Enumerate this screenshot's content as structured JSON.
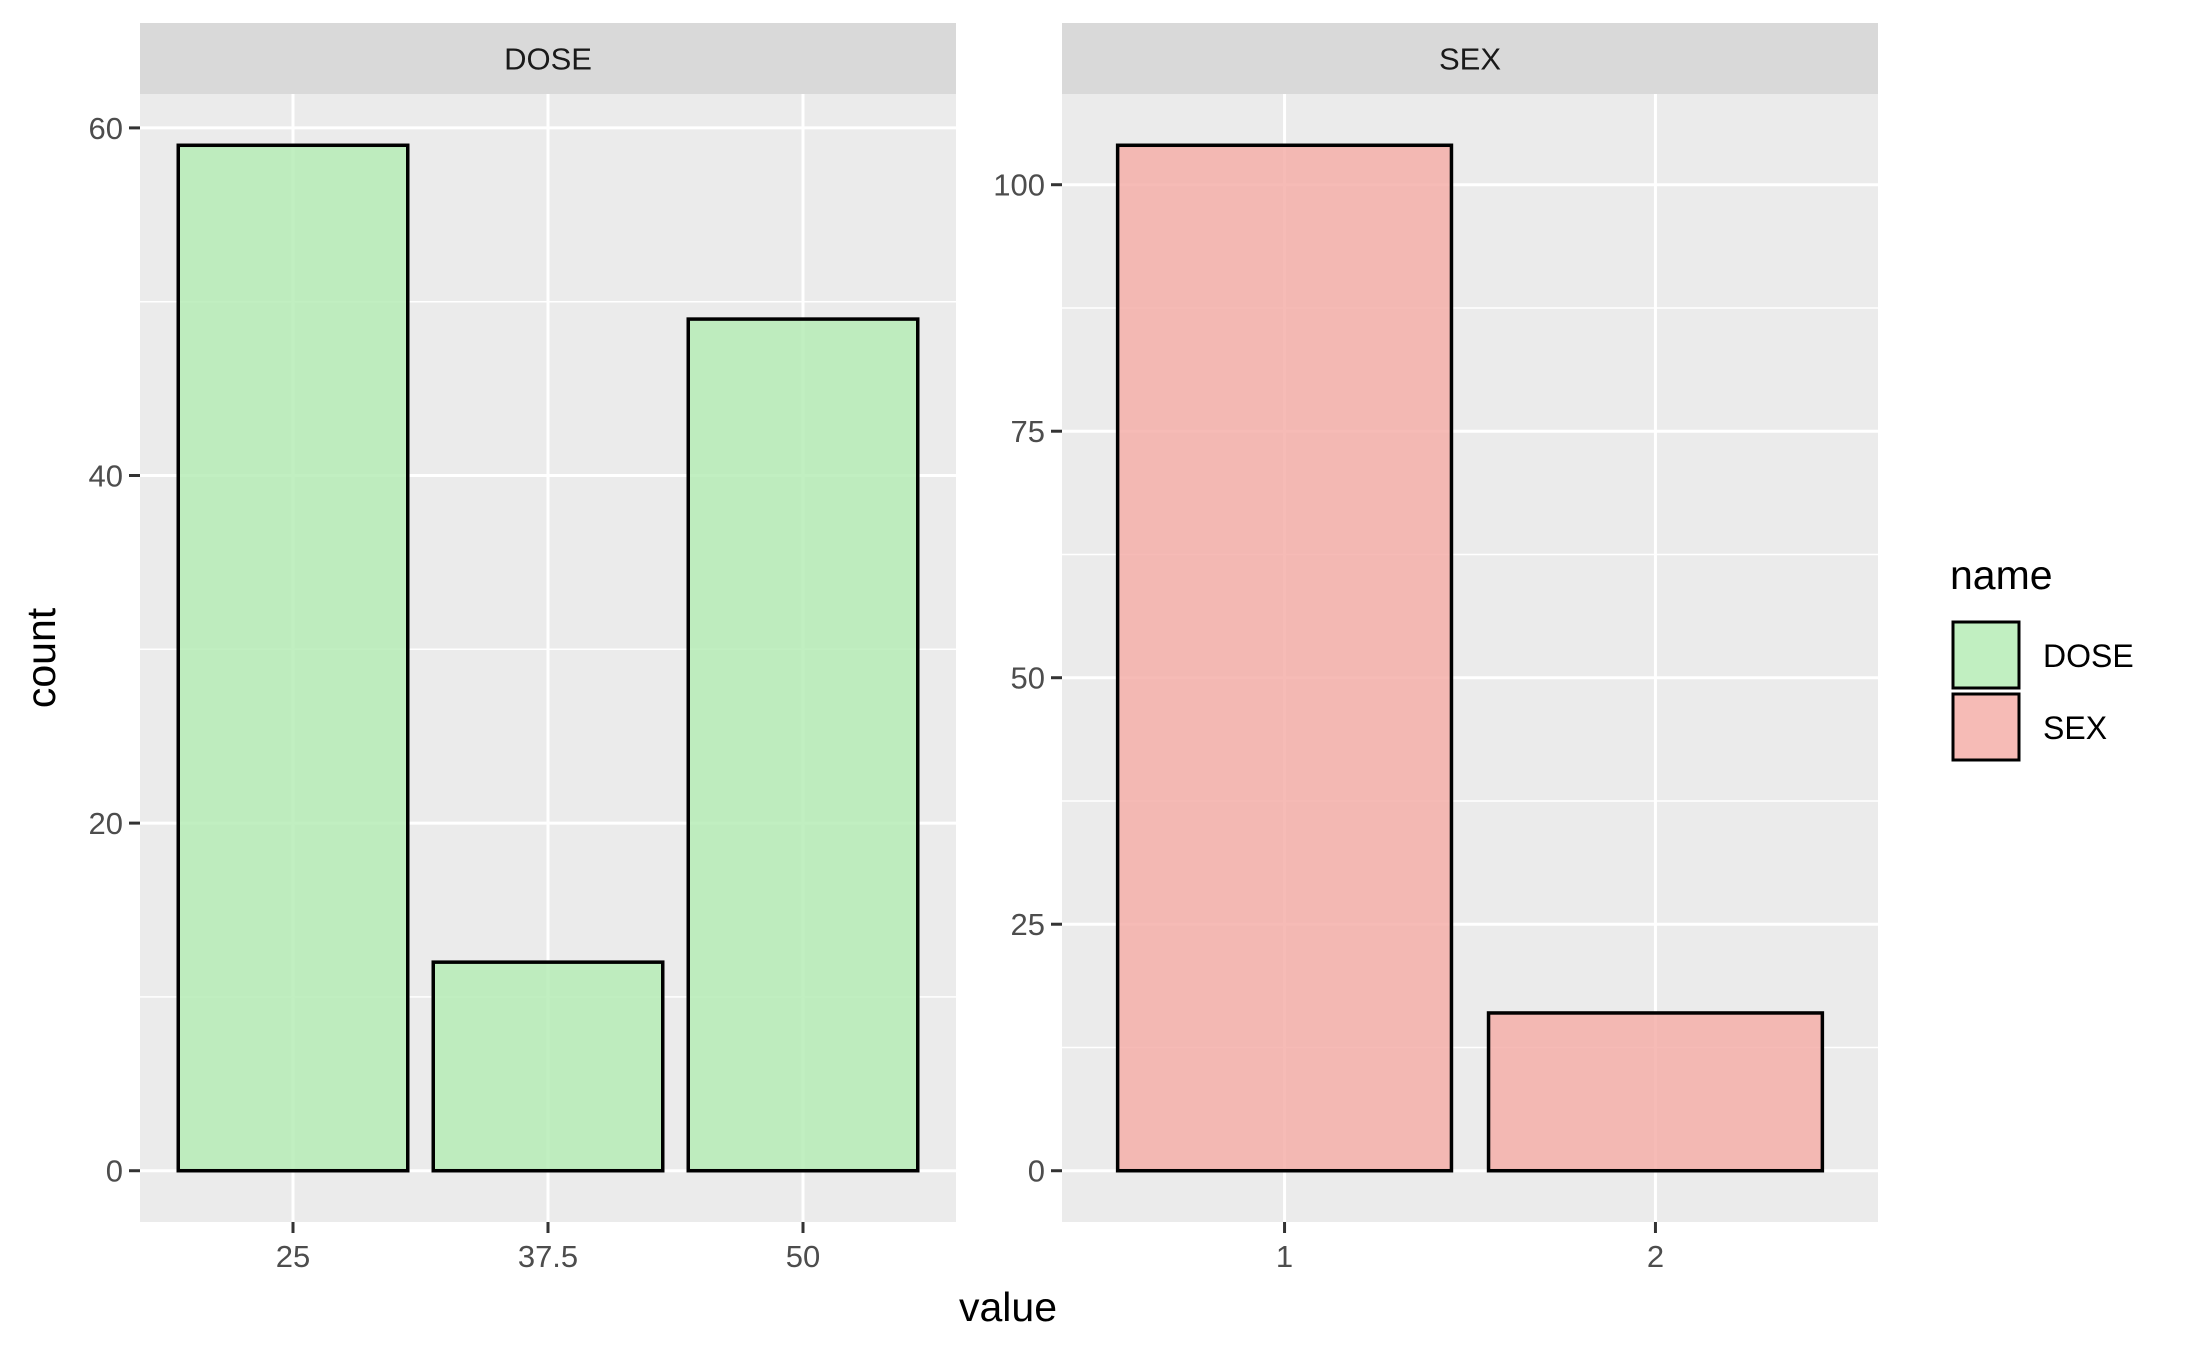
{
  "chart_data": [
    {
      "type": "bar",
      "facet_label": "DOSE",
      "categories": [
        "25",
        "37.5",
        "50"
      ],
      "values": [
        59,
        12,
        49
      ],
      "ylim": [
        -2.95,
        61.95
      ],
      "y_ticks": [
        0,
        20,
        40,
        60
      ],
      "y_tick_labels": [
        "0",
        "20",
        "40",
        "60"
      ],
      "fill_color": "#b3ecb3"
    },
    {
      "type": "bar",
      "facet_label": "SEX",
      "categories": [
        "1",
        "2"
      ],
      "values": [
        104,
        16
      ],
      "ylim": [
        -5.2,
        109.2
      ],
      "y_ticks": [
        0,
        25,
        50,
        75,
        100
      ],
      "y_tick_labels": [
        "0",
        "25",
        "50",
        "75",
        "100"
      ],
      "fill_color": "#f4aca6"
    }
  ],
  "axes": {
    "xlabel": "value",
    "ylabel": "count"
  },
  "legend": {
    "title": "name",
    "position": "right",
    "items": [
      {
        "label": "DOSE",
        "color": "#b3ecb3"
      },
      {
        "label": "SEX",
        "color": "#f4aca6"
      }
    ]
  },
  "colors": {
    "panel_background": "#ebebeb",
    "strip_background": "#d9d9d9",
    "grid": "#ffffff",
    "bar_outline": "#000000"
  }
}
